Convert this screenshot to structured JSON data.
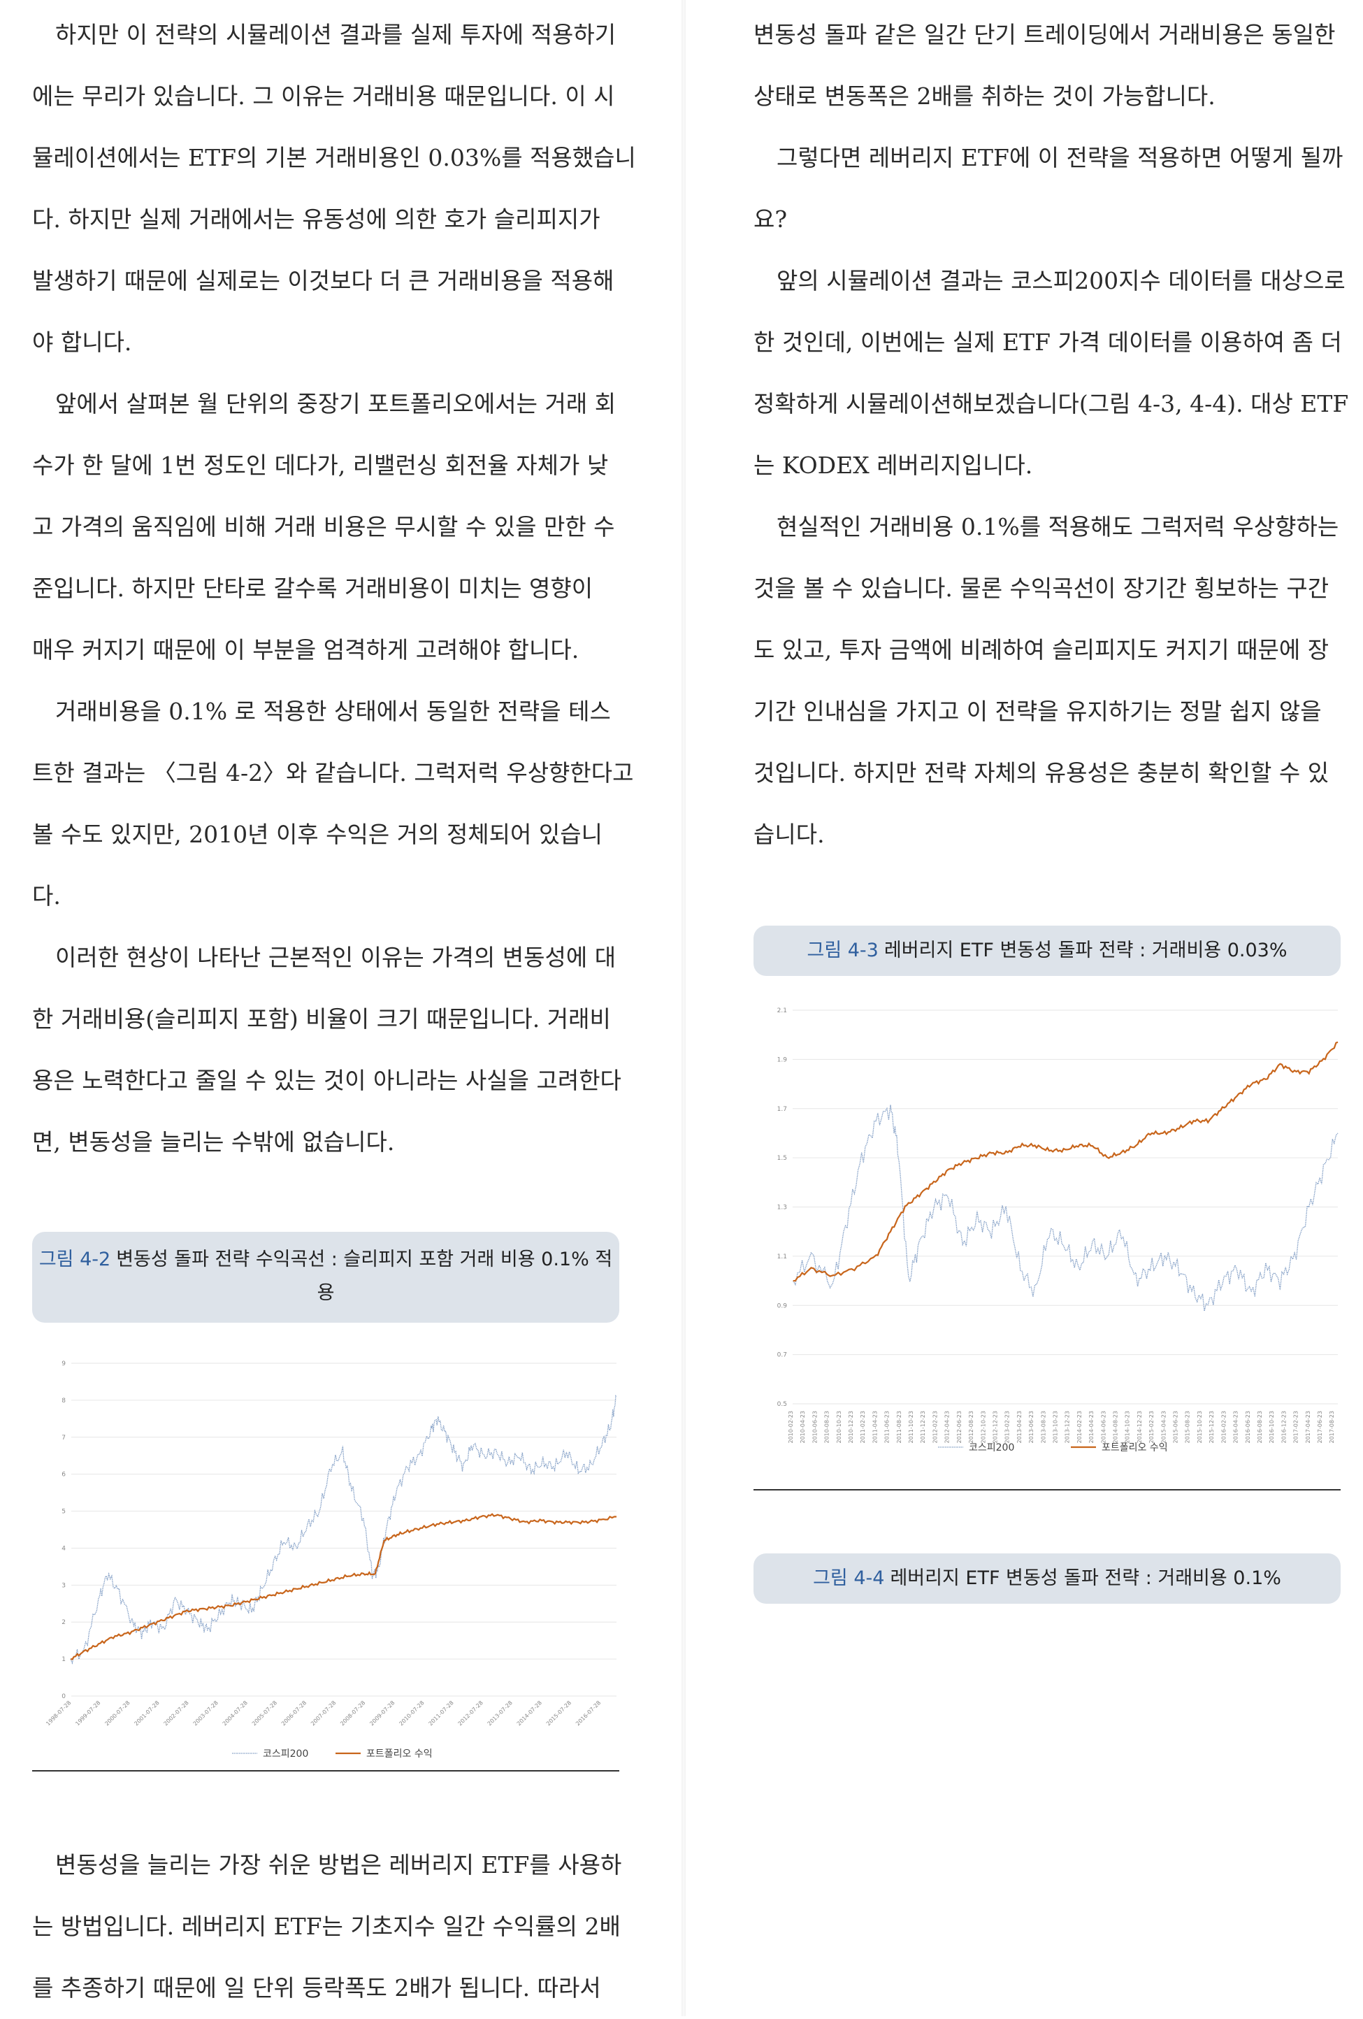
{
  "left_column": {
    "paragraph_1": [
      "하지만 이 전략의 시뮬레이션 결과를 실제 투자에 적용하기",
      "에는 무리가 있습니다. 그 이유는 거래비용 때문입니다. 이 시",
      "뮬레이션에서는 ETF의 기본 거래비용인 0.03%를 적용했습니",
      "다. 하지만 실제 거래에서는 유동성에 의한 호가 슬리피지가",
      "발생하기 때문에 실제로는 이것보다 더 큰 거래비용을 적용해",
      "야 합니다."
    ],
    "paragraph_2": [
      "앞에서 살펴본 월 단위의 중장기 포트폴리오에서는 거래 회",
      "수가 한 달에 1번 정도인 데다가, 리밸런싱 회전율 자체가 낮",
      "고 가격의 움직임에 비해 거래 비용은 무시할 수 있을 만한 수",
      "준입니다. 하지만 단타로 갈수록 거래비용이 미치는 영향이",
      "매우 커지기 때문에 이 부분을 엄격하게 고려해야 합니다."
    ],
    "paragraph_3": [
      "거래비용을 0.1% 로 적용한 상태에서 동일한 전략을 테스",
      "트한 결과는 〈그림 4-2〉와 같습니다. 그럭저럭 우상향한다고",
      "볼 수도 있지만, 2010년 이후 수익은 거의 정체되어 있습니",
      "다."
    ],
    "paragraph_4": [
      "이러한 현상이 나타난 근본적인 이유는 가격의 변동성에 대",
      "한 거래비용(슬리피지 포함) 비율이 크기 때문입니다. 거래비",
      "용은 노력한다고 줄일 수 있는 것이 아니라는 사실을 고려한다",
      "면, 변동성을 늘리는 수밖에 없습니다."
    ],
    "figure_4_2": {
      "number": "그림 4-2",
      "title_line1": "변동성 돌파 전략 수익곡선 : 슬리피지 포함 거래 비용 0.1% 적",
      "title_line2": "용"
    },
    "paragraph_5": [
      "변동성을 늘리는 가장 쉬운 방법은 레버리지 ETF를 사용하",
      "는 방법입니다. 레버리지 ETF는 기초지수 일간 수익률의 2배",
      "를 추종하기 때문에 일 단위 등락폭도 2배가 됩니다. 따라서"
    ]
  },
  "right_column": {
    "paragraph_1": [
      "변동성 돌파 같은 일간 단기 트레이딩에서 거래비용은 동일한",
      "상태로 변동폭은 2배를 취하는 것이 가능합니다."
    ],
    "paragraph_2": [
      "그렇다면 레버리지 ETF에 이 전략을 적용하면 어떻게 될까",
      "요?"
    ],
    "paragraph_3": [
      "앞의 시뮬레이션 결과는 코스피200지수 데이터를 대상으로",
      "한 것인데, 이번에는 실제 ETF 가격 데이터를 이용하여 좀 더",
      "정확하게 시뮬레이션해보겠습니다(그림 4-3, 4-4). 대상 ETF",
      "는 KODEX 레버리지입니다."
    ],
    "paragraph_4": [
      "현실적인 거래비용 0.1%를 적용해도 그럭저럭 우상향하는",
      "것을 볼 수 있습니다. 물론 수익곡선이 장기간 횡보하는 구간",
      "도 있고, 투자 금액에 비례하여 슬리피지도 커지기 때문에 장",
      "기간 인내심을 가지고 이 전략을 유지하기는 정말 쉽지 않을",
      "것입니다. 하지만 전략 자체의 유용성은 충분히 확인할 수 있",
      "습니다."
    ],
    "figure_4_3": {
      "number": "그림 4-3",
      "title": "레버리지 ETF 변동성 돌파 전략 : 거래비용 0.03%"
    },
    "figure_4_4": {
      "number": "그림 4-4",
      "title": "레버리지 ETF 변동성 돌파 전략 : 거래비용 0.1%"
    }
  },
  "chart_data": [
    {
      "type": "line",
      "title": "",
      "y_ticks": [
        "0",
        "1",
        "2",
        "3",
        "4",
        "5",
        "6",
        "7",
        "8",
        "9"
      ],
      "ylim": [
        0,
        9
      ],
      "x_ticks": [
        "1998-07-28",
        "1999-07-28",
        "2000-07-28",
        "2001-07-28",
        "2002-07-28",
        "2003-07-28",
        "2004-07-28",
        "2005-07-28",
        "2006-07-28",
        "2007-07-28",
        "2008-07-28",
        "2009-07-28",
        "2010-07-28",
        "2011-07-28",
        "2012-07-28",
        "2013-07-28",
        "2014-07-28",
        "2015-07-28",
        "2016-07-28"
      ],
      "legend_position": "bottom",
      "series": [
        {
          "name": "코스피200",
          "color": "#7f9cc4",
          "style": "dotted",
          "x": [
            1998.55,
            1999.0,
            1999.5,
            1999.8,
            2000.2,
            2000.7,
            2001.0,
            2001.3,
            2001.7,
            2002.1,
            2002.5,
            2002.9,
            2003.2,
            2003.6,
            2004.0,
            2004.3,
            2004.7,
            2005.0,
            2005.4,
            2005.8,
            2006.2,
            2006.6,
            2007.0,
            2007.4,
            2007.8,
            2008.1,
            2008.5,
            2008.8,
            2009.0,
            2009.3,
            2009.6,
            2010.0,
            2010.4,
            2010.8,
            2011.0,
            2011.3,
            2011.6,
            2011.9,
            2012.2,
            2012.6,
            2013.0,
            2013.4,
            2013.8,
            2014.2,
            2014.6,
            2015.0,
            2015.4,
            2015.8,
            2016.2,
            2016.6,
            2016.9,
            2017.1
          ],
          "y": [
            1.0,
            1.2,
            2.6,
            3.3,
            2.8,
            1.9,
            1.7,
            2.0,
            1.8,
            2.6,
            2.3,
            2.0,
            1.8,
            2.2,
            2.6,
            2.5,
            2.3,
            2.8,
            3.5,
            4.2,
            4.0,
            4.6,
            5.0,
            6.2,
            6.6,
            5.6,
            4.8,
            3.3,
            3.4,
            4.6,
            5.5,
            6.2,
            6.5,
            7.2,
            7.5,
            7.1,
            6.6,
            6.2,
            6.8,
            6.5,
            6.6,
            6.3,
            6.5,
            6.1,
            6.3,
            6.2,
            6.6,
            6.1,
            6.2,
            6.8,
            7.3,
            8.1
          ]
        },
        {
          "name": "포트폴리오 수익",
          "color": "#c8651b",
          "style": "solid",
          "x": [
            1998.55,
            1999.0,
            1999.5,
            2000.0,
            2000.5,
            2001.0,
            2001.5,
            2002.0,
            2002.5,
            2003.0,
            2003.5,
            2004.0,
            2004.5,
            2005.0,
            2005.5,
            2006.0,
            2006.5,
            2007.0,
            2007.5,
            2008.0,
            2008.5,
            2008.9,
            2009.2,
            2009.6,
            2010.0,
            2010.5,
            2011.0,
            2011.5,
            2012.0,
            2012.5,
            2013.0,
            2013.5,
            2014.0,
            2014.5,
            2015.0,
            2015.5,
            2016.0,
            2016.5,
            2017.1
          ],
          "y": [
            1.0,
            1.2,
            1.4,
            1.6,
            1.7,
            1.85,
            2.0,
            2.15,
            2.3,
            2.35,
            2.4,
            2.45,
            2.55,
            2.65,
            2.75,
            2.85,
            2.95,
            3.05,
            3.15,
            3.25,
            3.3,
            3.3,
            4.2,
            4.35,
            4.45,
            4.55,
            4.65,
            4.7,
            4.75,
            4.85,
            4.9,
            4.8,
            4.7,
            4.75,
            4.7,
            4.7,
            4.7,
            4.75,
            4.85
          ]
        }
      ]
    },
    {
      "type": "line",
      "title": "",
      "y_ticks": [
        "0.5",
        "0.7",
        "0.9",
        "1.1",
        "1.3",
        "1.5",
        "1.7",
        "1.9",
        "2.1"
      ],
      "ylim": [
        0.5,
        2.1
      ],
      "x_ticks": [
        "2010-02-23",
        "2010-04-23",
        "2010-06-23",
        "2010-08-23",
        "2010-10-23",
        "2010-12-23",
        "2011-02-23",
        "2011-04-23",
        "2011-06-23",
        "2011-08-23",
        "2011-10-23",
        "2011-12-23",
        "2012-02-23",
        "2012-04-23",
        "2012-06-23",
        "2012-08-23",
        "2012-10-23",
        "2012-12-23",
        "2013-02-23",
        "2013-04-23",
        "2013-06-23",
        "2013-08-23",
        "2013-10-23",
        "2013-12-23",
        "2014-02-23",
        "2014-04-23",
        "2014-06-23",
        "2014-08-23",
        "2014-10-23",
        "2014-12-23",
        "2015-02-23",
        "2015-04-23",
        "2015-06-23",
        "2015-08-23",
        "2015-10-23",
        "2015-12-23",
        "2016-02-23",
        "2016-04-23",
        "2016-06-23",
        "2016-08-23",
        "2016-10-23",
        "2016-12-23",
        "2017-02-23",
        "2017-04-23",
        "2017-06-23",
        "2017-08-23"
      ],
      "legend_position": "bottom",
      "series": [
        {
          "name": "코스피200",
          "color": "#7f9cc4",
          "style": "dotted",
          "x": [
            2010.15,
            2010.4,
            2010.7,
            2010.9,
            2011.1,
            2011.3,
            2011.5,
            2011.6,
            2011.75,
            2011.9,
            2012.1,
            2012.3,
            2012.5,
            2012.7,
            2012.9,
            2013.1,
            2013.3,
            2013.5,
            2013.7,
            2013.9,
            2014.1,
            2014.3,
            2014.5,
            2014.7,
            2014.9,
            2015.1,
            2015.3,
            2015.5,
            2015.7,
            2015.9,
            2016.1,
            2016.3,
            2016.5,
            2016.7,
            2016.9,
            2017.1,
            2017.3,
            2017.5,
            2017.7
          ],
          "y": [
            1.0,
            1.1,
            0.98,
            1.25,
            1.5,
            1.65,
            1.7,
            1.55,
            1.0,
            1.15,
            1.3,
            1.35,
            1.15,
            1.25,
            1.2,
            1.3,
            1.05,
            0.95,
            1.2,
            1.15,
            1.05,
            1.15,
            1.1,
            1.2,
            1.0,
            1.05,
            1.1,
            1.05,
            0.95,
            0.9,
            1.0,
            1.05,
            0.95,
            1.05,
            1.0,
            1.1,
            1.3,
            1.45,
            1.6
          ]
        },
        {
          "name": "포트폴리오 수익",
          "color": "#c8651b",
          "style": "solid",
          "x": [
            2010.15,
            2010.4,
            2010.7,
            2011.0,
            2011.3,
            2011.5,
            2011.7,
            2011.9,
            2012.1,
            2012.3,
            2012.5,
            2012.7,
            2012.9,
            2013.1,
            2013.3,
            2013.5,
            2013.7,
            2013.9,
            2014.1,
            2014.3,
            2014.5,
            2014.7,
            2014.9,
            2015.1,
            2015.3,
            2015.5,
            2015.7,
            2015.9,
            2016.1,
            2016.3,
            2016.5,
            2016.7,
            2016.9,
            2017.1,
            2017.3,
            2017.5,
            2017.7
          ],
          "y": [
            1.0,
            1.05,
            1.02,
            1.05,
            1.1,
            1.2,
            1.3,
            1.35,
            1.4,
            1.45,
            1.48,
            1.5,
            1.52,
            1.52,
            1.55,
            1.55,
            1.53,
            1.53,
            1.55,
            1.55,
            1.5,
            1.52,
            1.55,
            1.6,
            1.6,
            1.62,
            1.65,
            1.65,
            1.7,
            1.75,
            1.8,
            1.82,
            1.88,
            1.85,
            1.85,
            1.9,
            1.97
          ]
        }
      ]
    }
  ]
}
